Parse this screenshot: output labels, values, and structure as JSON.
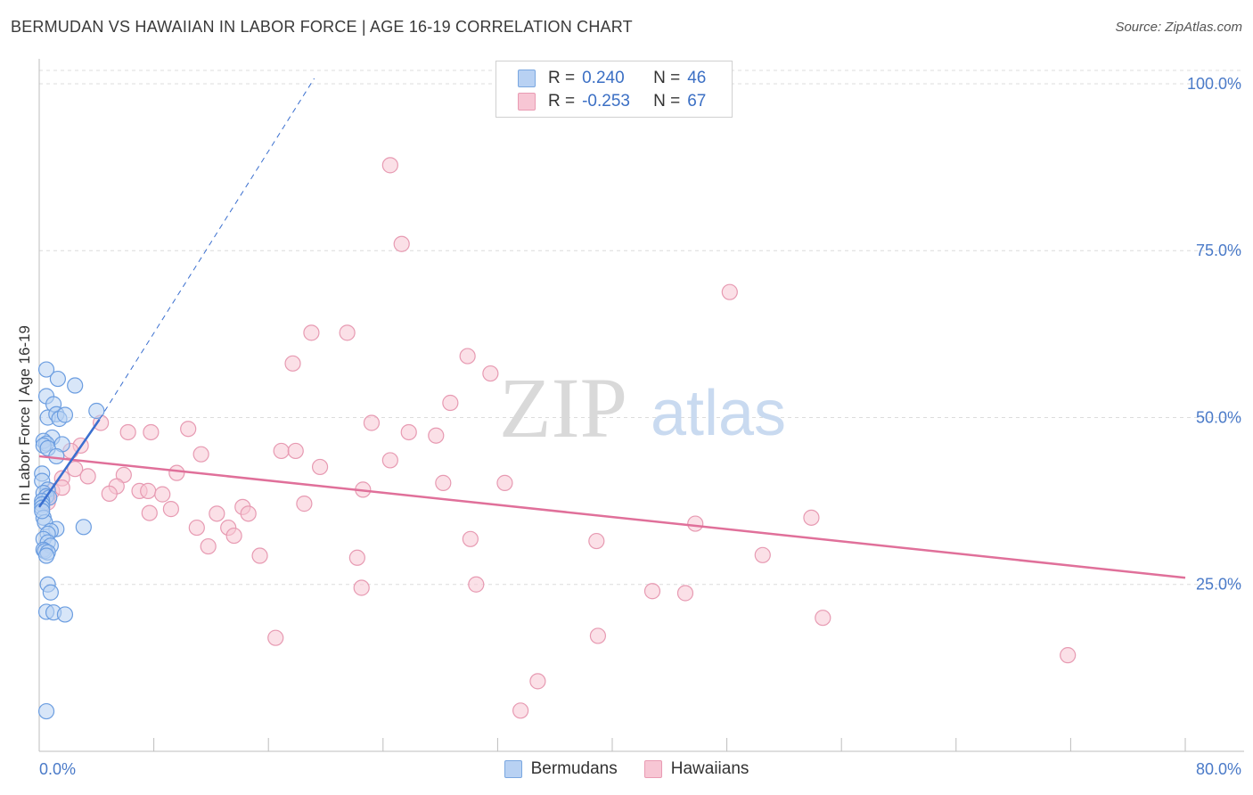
{
  "title": "BERMUDAN VS HAWAIIAN IN LABOR FORCE | AGE 16-19 CORRELATION CHART",
  "source": "Source: ZipAtlas.com",
  "watermark": {
    "zip": "ZIP",
    "atlas": "atlas"
  },
  "legend": {
    "r_label": "R =",
    "n_label": "N =",
    "rows": [
      {
        "r": "0.240",
        "n": "46",
        "fill": "#b8d1f3",
        "stroke": "#7aa7e0"
      },
      {
        "r": "-0.253",
        "n": "67",
        "fill": "#f7c6d4",
        "stroke": "#e99bb3"
      }
    ]
  },
  "bottom_legend": [
    "Bermudans",
    "Hawaiians"
  ],
  "colors": {
    "blue_fill": "#b8d1f3",
    "blue_stroke": "#6b9de0",
    "blue_line": "#3a6fcf",
    "pink_fill": "#f7c6d4",
    "pink_stroke": "#e79ab2",
    "pink_line": "#e0709a",
    "tick_text": "#4a7ac8"
  },
  "chart_data": {
    "type": "scatter",
    "title": "BERMUDAN VS HAWAIIAN IN LABOR FORCE | AGE 16-19 CORRELATION CHART",
    "xlabel": "",
    "ylabel": "In Labor Force | Age 16-19",
    "xlim": [
      0,
      80
    ],
    "ylim": [
      0,
      102
    ],
    "x_tick_labels": [
      "0.0%",
      "80.0%"
    ],
    "y_ticks": [
      25,
      50,
      75,
      100
    ],
    "y_tick_labels": [
      "25.0%",
      "50.0%",
      "75.0%",
      "100.0%"
    ],
    "series": [
      {
        "name": "Bermudans",
        "r": 0.24,
        "n": 46,
        "trend_solid": [
          [
            0,
            36.6
          ],
          [
            4.2,
            49.7
          ]
        ],
        "trend_dashed": [
          [
            4.2,
            49.7
          ],
          [
            19.2,
            100.8
          ]
        ],
        "points": [
          [
            0.5,
            57.2
          ],
          [
            1.3,
            55.8
          ],
          [
            2.5,
            54.8
          ],
          [
            0.5,
            53.2
          ],
          [
            1.0,
            52.0
          ],
          [
            4.0,
            51.0
          ],
          [
            0.6,
            50.0
          ],
          [
            1.2,
            50.5
          ],
          [
            1.4,
            49.8
          ],
          [
            1.8,
            50.4
          ],
          [
            0.9,
            47.0
          ],
          [
            0.3,
            46.5
          ],
          [
            0.5,
            46.1
          ],
          [
            0.3,
            45.8
          ],
          [
            0.6,
            45.4
          ],
          [
            1.6,
            46.0
          ],
          [
            1.2,
            44.2
          ],
          [
            0.2,
            41.6
          ],
          [
            0.2,
            40.5
          ],
          [
            0.6,
            39.2
          ],
          [
            0.3,
            38.7
          ],
          [
            0.5,
            38.2
          ],
          [
            0.7,
            38.0
          ],
          [
            0.2,
            37.5
          ],
          [
            0.2,
            37.0
          ],
          [
            0.2,
            36.5
          ],
          [
            0.3,
            35.0
          ],
          [
            0.4,
            34.3
          ],
          [
            3.1,
            33.6
          ],
          [
            1.2,
            33.3
          ],
          [
            0.8,
            33.0
          ],
          [
            0.6,
            32.6
          ],
          [
            0.3,
            31.8
          ],
          [
            0.6,
            31.3
          ],
          [
            0.8,
            30.8
          ],
          [
            0.3,
            30.2
          ],
          [
            0.4,
            30.0
          ],
          [
            0.6,
            29.8
          ],
          [
            0.5,
            29.3
          ],
          [
            0.6,
            25.0
          ],
          [
            0.8,
            23.8
          ],
          [
            0.5,
            20.9
          ],
          [
            1.0,
            20.8
          ],
          [
            1.8,
            20.5
          ],
          [
            0.5,
            6.0
          ],
          [
            0.2,
            36.0
          ]
        ]
      },
      {
        "name": "Hawaiians",
        "r": -0.253,
        "n": 67,
        "trend_solid": [
          [
            0,
            44.2
          ],
          [
            80,
            26.0
          ]
        ],
        "points": [
          [
            24.5,
            87.8
          ],
          [
            25.3,
            76.0
          ],
          [
            48.2,
            68.8
          ],
          [
            19.0,
            62.7
          ],
          [
            21.5,
            62.7
          ],
          [
            29.9,
            59.2
          ],
          [
            17.7,
            58.1
          ],
          [
            31.5,
            56.6
          ],
          [
            28.7,
            52.2
          ],
          [
            4.3,
            49.2
          ],
          [
            23.2,
            49.2
          ],
          [
            10.4,
            48.3
          ],
          [
            6.2,
            47.8
          ],
          [
            7.8,
            47.8
          ],
          [
            25.8,
            47.8
          ],
          [
            27.7,
            47.3
          ],
          [
            2.9,
            45.8
          ],
          [
            2.2,
            45.0
          ],
          [
            16.9,
            45.0
          ],
          [
            17.9,
            45.0
          ],
          [
            11.3,
            44.5
          ],
          [
            24.5,
            43.6
          ],
          [
            19.6,
            42.6
          ],
          [
            2.5,
            42.3
          ],
          [
            3.4,
            41.2
          ],
          [
            9.6,
            41.7
          ],
          [
            5.9,
            41.4
          ],
          [
            1.6,
            40.9
          ],
          [
            28.2,
            40.2
          ],
          [
            32.5,
            40.2
          ],
          [
            5.4,
            39.7
          ],
          [
            0.9,
            39.0
          ],
          [
            1.6,
            39.5
          ],
          [
            22.6,
            39.2
          ],
          [
            7.0,
            39.0
          ],
          [
            7.6,
            39.0
          ],
          [
            8.6,
            38.5
          ],
          [
            0.6,
            38.0
          ],
          [
            4.9,
            38.6
          ],
          [
            0.6,
            37.3
          ],
          [
            18.5,
            37.1
          ],
          [
            14.2,
            36.6
          ],
          [
            7.7,
            35.7
          ],
          [
            9.2,
            36.3
          ],
          [
            12.4,
            35.6
          ],
          [
            14.6,
            35.6
          ],
          [
            45.8,
            34.1
          ],
          [
            53.9,
            35.0
          ],
          [
            11.0,
            33.5
          ],
          [
            13.2,
            33.5
          ],
          [
            13.6,
            32.3
          ],
          [
            30.1,
            31.8
          ],
          [
            38.9,
            31.5
          ],
          [
            11.8,
            30.7
          ],
          [
            15.4,
            29.3
          ],
          [
            22.2,
            29.0
          ],
          [
            50.5,
            29.4
          ],
          [
            30.5,
            25.0
          ],
          [
            22.5,
            24.5
          ],
          [
            42.8,
            24.0
          ],
          [
            45.1,
            23.7
          ],
          [
            54.7,
            20.0
          ],
          [
            16.5,
            17.0
          ],
          [
            39.0,
            17.3
          ],
          [
            71.8,
            14.4
          ],
          [
            34.8,
            10.5
          ],
          [
            33.6,
            6.1
          ]
        ]
      }
    ]
  }
}
